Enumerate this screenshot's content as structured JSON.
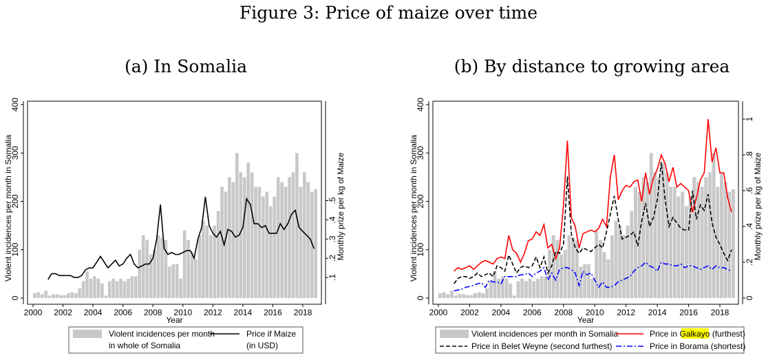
{
  "figure_title": "Figure 3: Price of maize over time",
  "chart_data": [
    {
      "type": "bar+line",
      "title": "(a) In Somalia",
      "xlabel": "Year",
      "ylabel_left": "Violent incidences per month in Somalia",
      "ylabel_right": "Monthly prize per kg of Maize",
      "xlim": [
        2000,
        2019
      ],
      "ylim_left": [
        0,
        400
      ],
      "ylim_right": [
        0,
        1.0
      ],
      "xticks": [
        "2000",
        "2002",
        "2004",
        "2006",
        "2008",
        "2010",
        "2012",
        "2014",
        "2016",
        "2018"
      ],
      "yticks_left": [
        "0",
        "100",
        "200",
        "300",
        "400"
      ],
      "yticks_right": [
        ".1",
        ".2",
        ".3",
        ".4",
        ".5"
      ],
      "legend": {
        "placement": "bottom",
        "entries": [
          "Violent incidences per month",
          "in whole of Somalia",
          "Price if Maize",
          "(in USD)"
        ]
      },
      "bars_start": 2000,
      "bars_step": 0.25,
      "bar_color": "#c8c8c8",
      "bars": [
        10,
        12,
        8,
        15,
        5,
        8,
        8,
        6,
        6,
        10,
        12,
        10,
        20,
        35,
        55,
        40,
        45,
        40,
        30,
        5,
        35,
        40,
        35,
        40,
        35,
        40,
        45,
        45,
        100,
        130,
        120,
        90,
        100,
        130,
        125,
        120,
        65,
        70,
        70,
        40,
        140,
        120,
        95,
        80,
        130,
        160,
        150,
        130,
        150,
        180,
        230,
        220,
        250,
        240,
        300,
        260,
        250,
        280,
        260,
        230,
        230,
        210,
        220,
        190,
        210,
        250,
        240,
        230,
        250,
        260,
        300,
        230,
        260,
        240,
        220,
        225
      ],
      "series": [
        {
          "name": "Price if Maize (in USD)",
          "color": "#000000",
          "dash": "",
          "start": 2001,
          "step": 0.25,
          "values": [
            0.09,
            0.12,
            0.12,
            0.11,
            0.11,
            0.11,
            0.11,
            0.1,
            0.1,
            0.11,
            0.14,
            0.15,
            0.15,
            0.18,
            0.21,
            0.18,
            0.15,
            0.17,
            0.19,
            0.16,
            0.17,
            0.2,
            0.22,
            0.17,
            0.15,
            0.16,
            0.17,
            0.17,
            0.2,
            0.3,
            0.48,
            0.25,
            0.22,
            0.23,
            0.22,
            0.22,
            0.23,
            0.24,
            0.24,
            0.2,
            0.3,
            0.36,
            0.52,
            0.37,
            0.33,
            0.31,
            0.34,
            0.27,
            0.35,
            0.34,
            0.31,
            0.32,
            0.36,
            0.51,
            0.48,
            0.38,
            0.38,
            0.36,
            0.37,
            0.33,
            0.33,
            0.33,
            0.38,
            0.35,
            0.38,
            0.43,
            0.45,
            0.36,
            0.34,
            0.32,
            0.3,
            0.25
          ]
        }
      ]
    },
    {
      "type": "bar+line",
      "title": "(b) By distance to growing area",
      "xlabel": "Year",
      "ylabel_left": "Violent incidences per month in Somalia",
      "ylabel_right": "Monthly prize per kg of Maize",
      "xlim": [
        2000,
        2019
      ],
      "ylim_left": [
        0,
        400
      ],
      "ylim_right": [
        0,
        1.08
      ],
      "xticks": [
        "2000",
        "2002",
        "2004",
        "2006",
        "2008",
        "2010",
        "2012",
        "2014",
        "2016",
        "2018"
      ],
      "yticks_left": [
        "0",
        "100",
        "200",
        "300",
        "400"
      ],
      "yticks_right": [
        "0",
        ".2",
        ".4",
        ".6",
        ".8",
        "1"
      ],
      "legend": {
        "placement": "bottom",
        "entries": [
          "Violent incidences per month in Somalia",
          "Price in ",
          "Galkayo",
          " (furthest)",
          "Price in Belet Weyne (second furthest)",
          "Price in Borama (shortest)"
        ],
        "highlight_color": "#ffff00"
      },
      "bars_start": 2000,
      "bars_step": 0.25,
      "bar_color": "#c8c8c8",
      "bars": [
        10,
        12,
        8,
        15,
        5,
        8,
        8,
        6,
        6,
        10,
        12,
        10,
        20,
        35,
        55,
        40,
        45,
        40,
        30,
        5,
        35,
        40,
        35,
        40,
        35,
        40,
        45,
        45,
        100,
        130,
        120,
        90,
        100,
        130,
        125,
        120,
        65,
        70,
        70,
        40,
        140,
        120,
        95,
        80,
        130,
        160,
        150,
        130,
        150,
        180,
        230,
        220,
        250,
        240,
        300,
        260,
        250,
        280,
        260,
        230,
        230,
        210,
        220,
        190,
        210,
        250,
        240,
        230,
        250,
        260,
        300,
        230,
        260,
        240,
        220,
        225
      ],
      "series": [
        {
          "name": "Price in Galkayo (furthest)",
          "color": "#ff0000",
          "dash": "",
          "start": 2001,
          "step": 0.25,
          "values": [
            0.15,
            0.17,
            0.16,
            0.17,
            0.18,
            0.16,
            0.18,
            0.2,
            0.21,
            0.2,
            0.19,
            0.22,
            0.23,
            0.22,
            0.35,
            0.27,
            0.25,
            0.2,
            0.25,
            0.32,
            0.33,
            0.37,
            0.35,
            0.41,
            0.28,
            0.3,
            0.22,
            0.28,
            0.52,
            0.88,
            0.45,
            0.4,
            0.28,
            0.36,
            0.37,
            0.38,
            0.37,
            0.39,
            0.44,
            0.4,
            0.68,
            0.8,
            0.55,
            0.6,
            0.63,
            0.62,
            0.65,
            0.66,
            0.54,
            0.7,
            0.58,
            0.67,
            0.72,
            0.8,
            0.75,
            0.65,
            0.73,
            0.62,
            0.64,
            0.62,
            0.6,
            0.48,
            0.56,
            0.66,
            0.7,
            1.0,
            0.76,
            0.84,
            0.7,
            0.7,
            0.56,
            0.48
          ]
        },
        {
          "name": "Price in Belet Weyne (second furthest)",
          "color": "#000000",
          "dash": "6,3",
          "start": 2001,
          "step": 0.25,
          "values": [
            0.08,
            0.11,
            0.12,
            0.12,
            0.11,
            0.12,
            0.14,
            0.12,
            0.13,
            0.14,
            0.12,
            0.18,
            0.17,
            0.15,
            0.24,
            0.19,
            0.14,
            0.17,
            0.18,
            0.17,
            0.18,
            0.23,
            0.17,
            0.23,
            0.14,
            0.18,
            0.26,
            0.25,
            0.3,
            0.68,
            0.36,
            0.28,
            0.25,
            0.28,
            0.27,
            0.26,
            0.28,
            0.3,
            0.28,
            0.37,
            0.47,
            0.57,
            0.44,
            0.33,
            0.34,
            0.35,
            0.37,
            0.29,
            0.43,
            0.53,
            0.4,
            0.45,
            0.55,
            0.76,
            0.55,
            0.4,
            0.45,
            0.42,
            0.39,
            0.38,
            0.38,
            0.6,
            0.44,
            0.52,
            0.49,
            0.58,
            0.42,
            0.34,
            0.3,
            0.25,
            0.21,
            0.27
          ]
        },
        {
          "name": "Price in Borama (shortest)",
          "color": "#0000ff",
          "dash": "8,3,2,3",
          "start": 2001,
          "step": 0.25,
          "values": [
            0.04,
            0.045,
            0.05,
            0.06,
            0.065,
            0.07,
            0.08,
            0.085,
            0.06,
            0.1,
            0.09,
            0.09,
            0.08,
            0.12,
            0.12,
            0.12,
            0.12,
            0.13,
            0.13,
            0.14,
            0.12,
            0.14,
            0.15,
            0.17,
            0.1,
            0.14,
            0.1,
            0.16,
            0.17,
            0.17,
            0.16,
            0.14,
            0.07,
            0.15,
            0.13,
            0.14,
            0.1,
            0.06,
            0.09,
            0.06,
            0.06,
            0.07,
            0.09,
            0.1,
            0.11,
            0.12,
            0.15,
            0.17,
            0.18,
            0.2,
            0.18,
            0.17,
            0.15,
            0.2,
            0.19,
            0.19,
            0.18,
            0.18,
            0.19,
            0.17,
            0.18,
            0.18,
            0.17,
            0.16,
            0.17,
            0.18,
            0.16,
            0.18,
            0.17,
            0.17,
            0.16,
            0.15
          ]
        }
      ]
    }
  ]
}
